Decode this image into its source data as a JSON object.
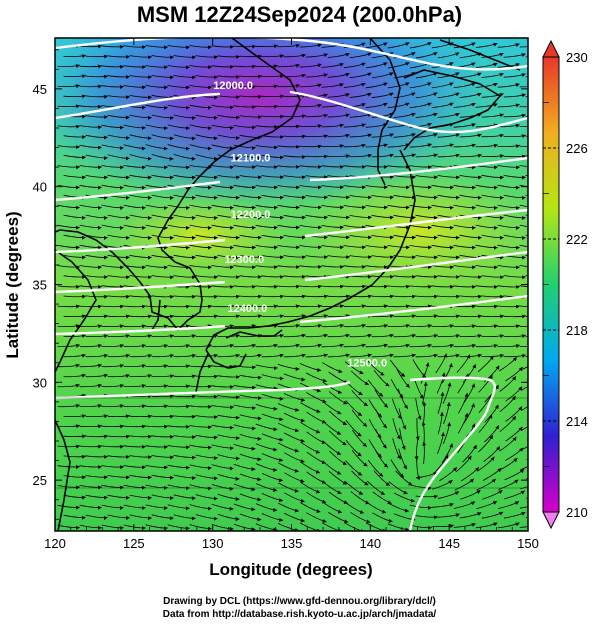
{
  "title": "MSM 12Z24Sep2024 (200.0hPa)",
  "x_axis": {
    "label": "Longitude (degrees)",
    "ticks": [
      120,
      125,
      130,
      135,
      140,
      145,
      150
    ]
  },
  "y_axis": {
    "label": "Latitude  (degrees)",
    "ticks": [
      25,
      30,
      35,
      40,
      45
    ]
  },
  "contour_labels": [
    {
      "value": "12000.0",
      "lon": 131.3,
      "lat": 45.0
    },
    {
      "value": "12100.0",
      "lon": 132.4,
      "lat": 41.3
    },
    {
      "value": "12200.0",
      "lon": 132.4,
      "lat": 38.4
    },
    {
      "value": "12300.0",
      "lon": 132.0,
      "lat": 36.1
    },
    {
      "value": "12400.0",
      "lon": 132.2,
      "lat": 33.6
    },
    {
      "value": "12500.0",
      "lon": 139.8,
      "lat": 30.8
    }
  ],
  "colorbar": {
    "min": 210,
    "max": 230,
    "tick_labels": [
      230,
      226,
      222,
      218,
      214,
      210
    ],
    "colors": [
      "#d800c8",
      "#3020d0",
      "#00a8f0",
      "#20d070",
      "#b4e614",
      "#f0ae20",
      "#e83828"
    ]
  },
  "chart_data": {
    "type": "heatmap",
    "title": "MSM 12Z24Sep2024 (200.0hPa)",
    "xlabel": "Longitude (degrees)",
    "ylabel": "Latitude  (degrees)",
    "xlim": [
      120,
      150
    ],
    "ylim": [
      22.4,
      47.6
    ],
    "color_range": [
      210,
      230
    ],
    "contour_levels": [
      12000.0,
      12100.0,
      12200.0,
      12300.0,
      12400.0,
      12500.0
    ],
    "overlay": "wind streamlines (black arrows) and geopotential height contours (white)"
  },
  "credits": {
    "line1": "Drawing by DCL (https://www.gfd-dennou.org/library/dcl/)",
    "line2": "Data from http://database.rish.kyoto-u.ac.jp/arch/jmadata/"
  }
}
